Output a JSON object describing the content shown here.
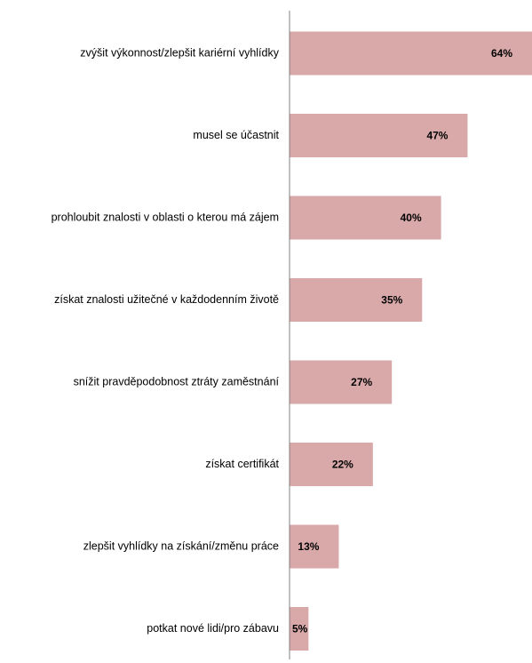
{
  "chart_data": {
    "type": "bar",
    "orientation": "horizontal",
    "categories": [
      "zvýšit výkonnost/zlepšit kariérní vyhlídky",
      "musel se účastnit",
      "prohloubit znalosti v oblasti o kterou má zájem",
      "získat znalosti užitečné v každodenním životě",
      "snížit pravděpodobnost ztráty zaměstnání",
      "získat certifikát",
      "zlepšit vyhlídky na získání/změnu práce",
      "potkat nové lidi/pro zábavu"
    ],
    "values": [
      64,
      47,
      40,
      35,
      27,
      22,
      13,
      5
    ],
    "data_labels": [
      "64%",
      "47%",
      "40%",
      "35%",
      "27%",
      "22%",
      "13%",
      "5%"
    ],
    "unit": "%",
    "xlim": [
      0,
      64
    ],
    "bar_color": "#d9a9a9",
    "axis_color": "#808080",
    "grid": false,
    "legend": "none",
    "title": "",
    "xlabel": "",
    "ylabel": ""
  }
}
